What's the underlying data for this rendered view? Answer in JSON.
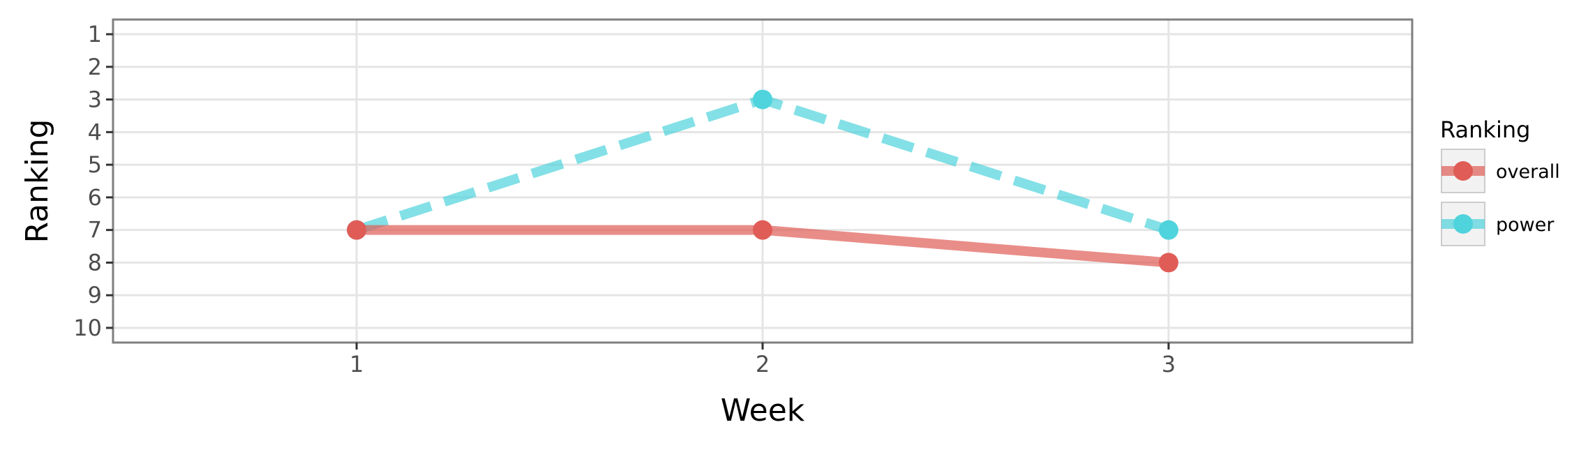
{
  "chart_data": {
    "type": "line",
    "xlabel": "Week",
    "ylabel": "Ranking",
    "x": [
      1,
      2,
      3
    ],
    "x_ticks": [
      "1",
      "2",
      "3"
    ],
    "xlim": [
      0.4,
      3.6
    ],
    "y_reversed": true,
    "y_ticks": [
      "1",
      "2",
      "3",
      "4",
      "5",
      "6",
      "7",
      "8",
      "9",
      "10"
    ],
    "ylim": [
      0.55,
      10.45
    ],
    "grid": true,
    "legend": {
      "title": "Ranking",
      "placement": "right"
    },
    "series": [
      {
        "name": "overall",
        "values": [
          7,
          7,
          8
        ],
        "color": "#e05c56",
        "line_style": "solid"
      },
      {
        "name": "power",
        "values": [
          7,
          3,
          7
        ],
        "color": "#4fd3dc",
        "line_style": "dashed"
      }
    ]
  }
}
